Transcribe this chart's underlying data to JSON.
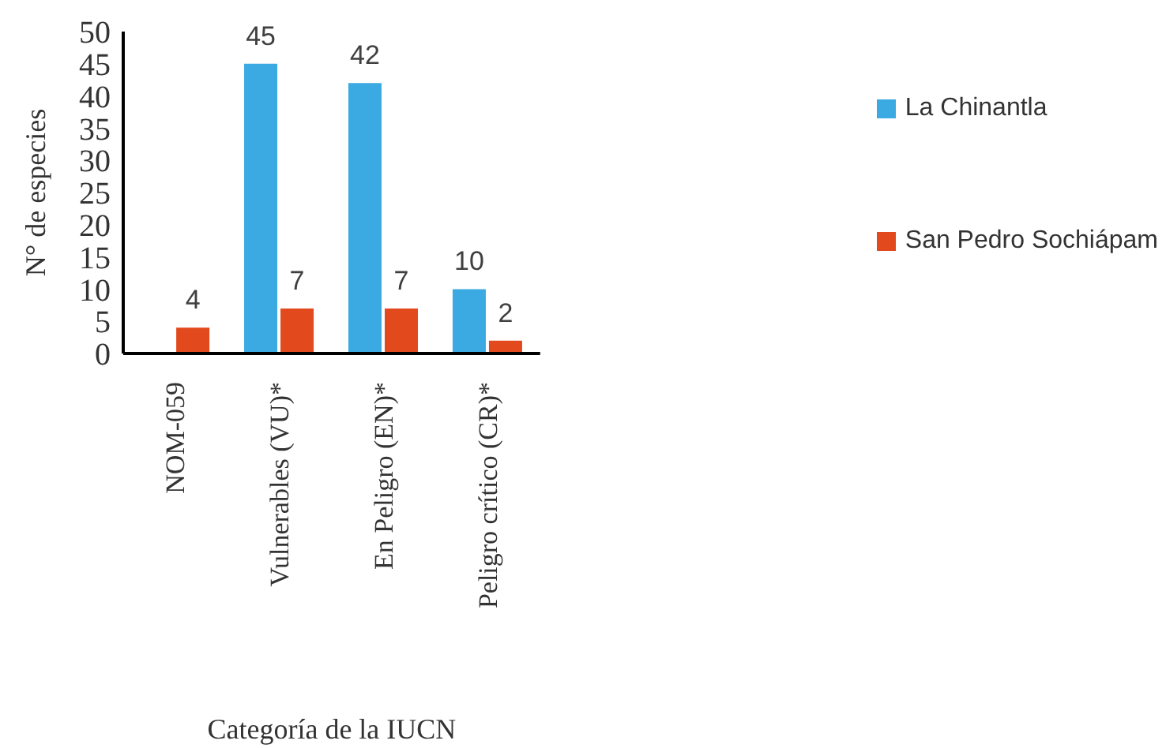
{
  "chart_data": {
    "type": "bar",
    "xlabel": "Categoría de la IUCN",
    "ylabel": "N° de especies",
    "categories": [
      "NOM-059",
      "Vulnerables (VU)*",
      "En Peligro (EN)*",
      "Peligro crítico (CR)*"
    ],
    "series": [
      {
        "name": "La Chinantla",
        "color": "#3ba9e2",
        "values": [
          null,
          45,
          42,
          10
        ]
      },
      {
        "name": "San Pedro Sochiápam",
        "color": "#e2491c",
        "values": [
          4,
          7,
          7,
          2
        ]
      }
    ],
    "ylim": [
      0,
      50
    ],
    "yticks": [
      0,
      5,
      10,
      15,
      20,
      25,
      30,
      35,
      40,
      45,
      50
    ],
    "grid": false,
    "legend": "right",
    "data_labels": true
  }
}
